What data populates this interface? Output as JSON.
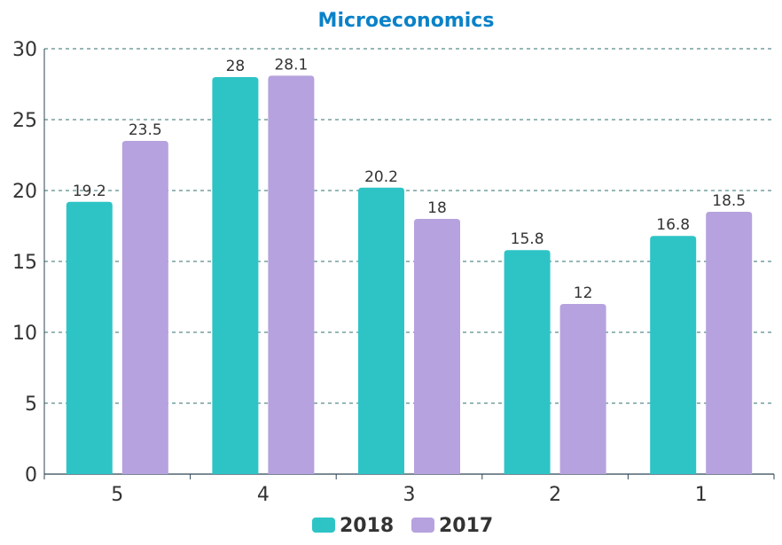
{
  "chart_data": {
    "type": "bar",
    "title": "Microeconomics",
    "xlabel": "",
    "ylabel": "",
    "categories": [
      "5",
      "4",
      "3",
      "2",
      "1"
    ],
    "series": [
      {
        "name": "2018",
        "values": [
          19.2,
          28,
          20.2,
          15.8,
          16.8
        ],
        "color": "#2ec4c6"
      },
      {
        "name": "2017",
        "values": [
          23.5,
          28.1,
          18,
          12,
          18.5
        ],
        "color": "#b6a2de"
      }
    ],
    "ylim": [
      0,
      30
    ],
    "yticks": [
      0,
      5,
      10,
      15,
      20,
      25,
      30
    ],
    "grid": true,
    "legend": "bottom-center",
    "colors": {
      "title": "#0a82c8",
      "axis": "#2f4554",
      "grid": "#2f6f6f",
      "text": "#333333"
    }
  }
}
